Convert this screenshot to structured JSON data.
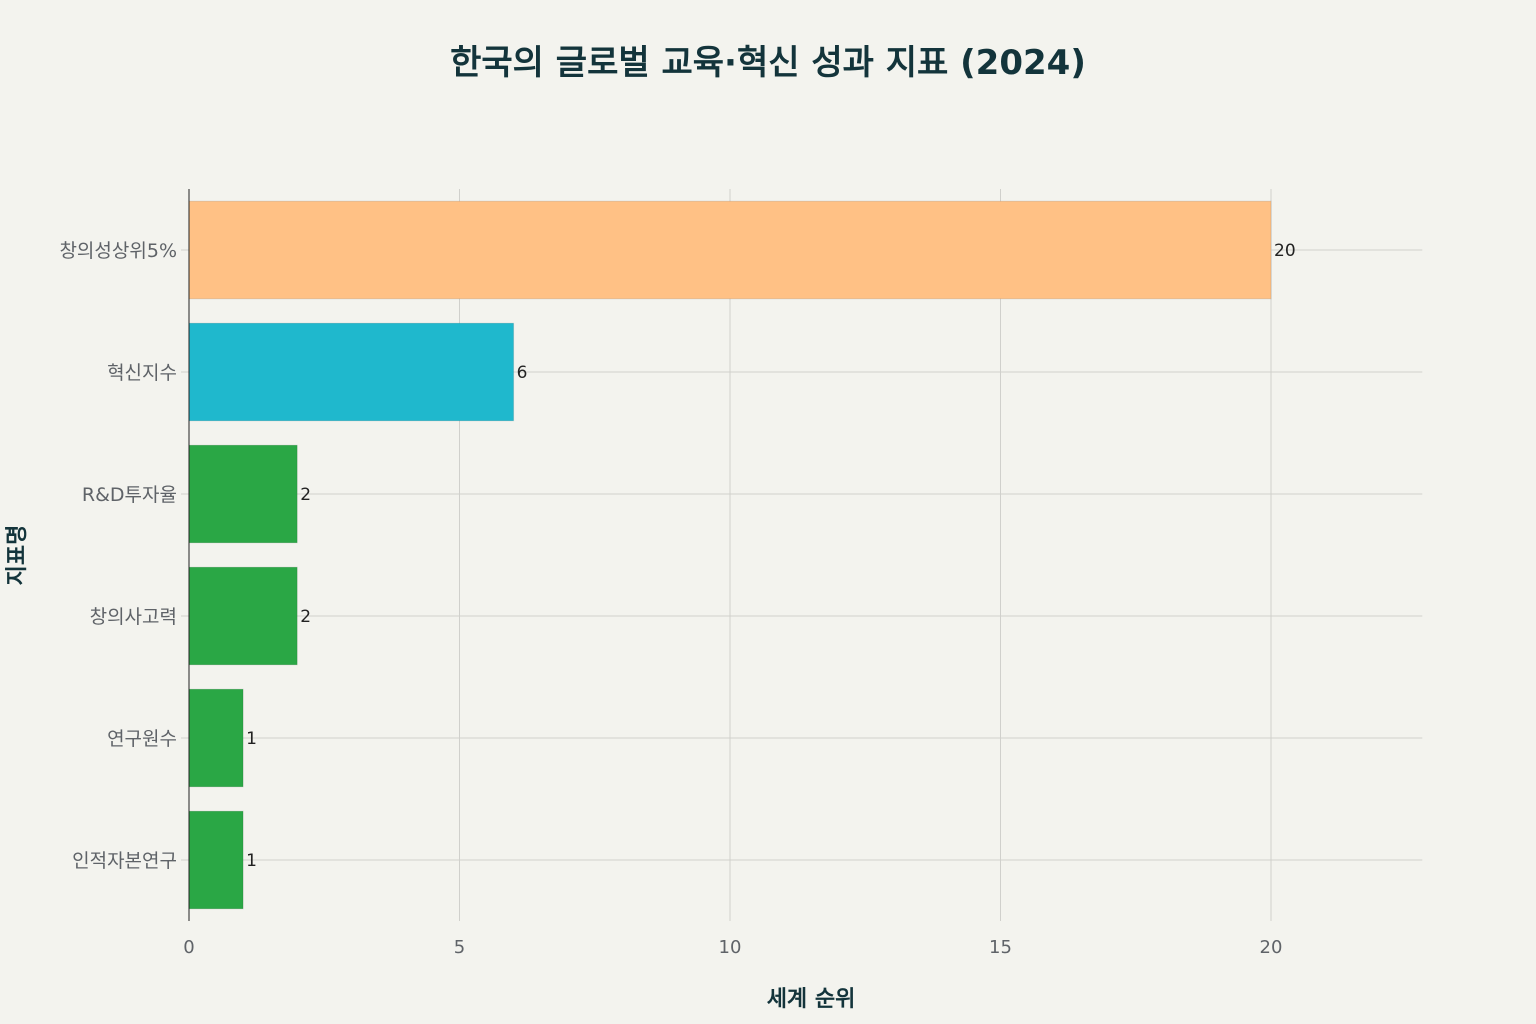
{
  "chart_data": {
    "type": "bar",
    "orientation": "horizontal",
    "title": "한국의 글로벌 교육·혁신 성과 지표 (2024)",
    "xlabel": "세계 순위",
    "ylabel": "지표명",
    "categories": [
      "창의성상위5%",
      "혁신지수",
      "R&D투자율",
      "창의사고력",
      "연구원수",
      "인적자본연구"
    ],
    "values": [
      20,
      6,
      2,
      2,
      1,
      1
    ],
    "data_labels": [
      "20",
      "6",
      "2",
      "2",
      "1",
      "1"
    ],
    "colors": [
      "#ffc185",
      "#1fb8cd",
      "#2aa745",
      "#2aa745",
      "#2aa745",
      "#2aa745"
    ],
    "xlim": [
      0,
      23
    ],
    "xticks": [
      0,
      5,
      10,
      15,
      20
    ],
    "xtick_labels": [
      "0",
      "5",
      "10",
      "15",
      "20"
    ],
    "grid": true,
    "legend": "none"
  }
}
